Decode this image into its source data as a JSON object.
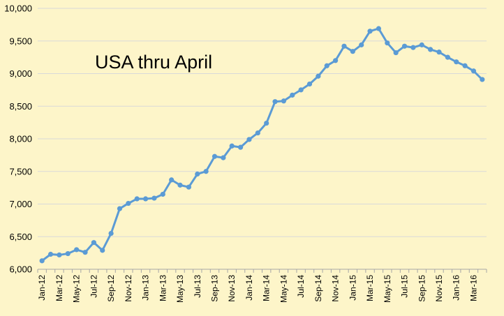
{
  "chart_data": {
    "type": "line",
    "title": "USA thru April",
    "xlabel": "",
    "ylabel": "",
    "ylim": [
      6000,
      10000
    ],
    "yticks": [
      "6,000",
      "6,500",
      "7,000",
      "7,500",
      "8,000",
      "8,500",
      "9,000",
      "9,500",
      "10,000"
    ],
    "grid": true,
    "legend": "none",
    "line_color": "#5b9bd5",
    "background_color": "#fdf5c9",
    "x": [
      "Jan-12",
      "Feb-12",
      "Mar-12",
      "Apr-12",
      "May-12",
      "Jun-12",
      "Jul-12",
      "Aug-12",
      "Sep-12",
      "Oct-12",
      "Nov-12",
      "Dec-12",
      "Jan-13",
      "Feb-13",
      "Mar-13",
      "Apr-13",
      "May-13",
      "Jun-13",
      "Jul-13",
      "Aug-13",
      "Sep-13",
      "Oct-13",
      "Nov-13",
      "Dec-13",
      "Jan-14",
      "Feb-14",
      "Mar-14",
      "Apr-14",
      "May-14",
      "Jun-14",
      "Jul-14",
      "Aug-14",
      "Sep-14",
      "Oct-14",
      "Nov-14",
      "Dec-14",
      "Jan-15",
      "Feb-15",
      "Mar-15",
      "Apr-15",
      "May-15",
      "Jun-15",
      "Jul-15",
      "Aug-15",
      "Sep-15",
      "Oct-15",
      "Nov-15",
      "Dec-15",
      "Jan-16",
      "Feb-16",
      "Mar-16",
      "Apr-16"
    ],
    "x_tick_labels": [
      "Jan-12",
      "Mar-12",
      "May-12",
      "Jul-12",
      "Sep-12",
      "Nov-12",
      "Jan-13",
      "Mar-13",
      "May-13",
      "Jul-13",
      "Sep-13",
      "Nov-13",
      "Jan-14",
      "Mar-14",
      "May-14",
      "Jul-14",
      "Sep-14",
      "Nov-14",
      "Jan-15",
      "Mar-15",
      "May-15",
      "Jul-15",
      "Sep-15",
      "Nov-15",
      "Jan-16",
      "Mar-16"
    ],
    "series": [
      {
        "values": [
          6130,
          6230,
          6220,
          6240,
          6300,
          6260,
          6410,
          6290,
          6550,
          6930,
          7010,
          7080,
          7080,
          7090,
          7150,
          7370,
          7290,
          7260,
          7460,
          7500,
          7730,
          7710,
          7890,
          7870,
          7990,
          8090,
          8240,
          8570,
          8580,
          8670,
          8750,
          8840,
          8960,
          9120,
          9200,
          9420,
          9340,
          9440,
          9650,
          9690,
          9470,
          9320,
          9420,
          9400,
          9440,
          9370,
          9330,
          9250,
          9180,
          9120,
          9040,
          8910
        ]
      }
    ]
  }
}
